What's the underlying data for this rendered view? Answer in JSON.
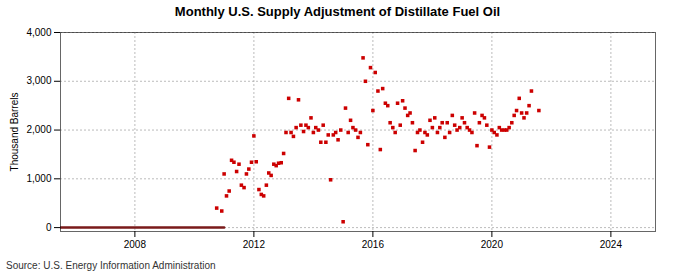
{
  "chart_data": {
    "type": "scatter",
    "title": "Monthly U.S. Supply Adjustment of Distillate Fuel Oil",
    "ylabel": "Thousand Barrels",
    "source": "Source: U.S. Energy Information Administration",
    "xlim": [
      2005.5,
      2025.5
    ],
    "ylim": [
      -80,
      4000
    ],
    "xticks": [
      2008,
      2012,
      2016,
      2020,
      2024
    ],
    "yticks": [
      0,
      {
        "value": 1000,
        "label": "1,000"
      },
      {
        "value": 2000,
        "label": "2,000"
      },
      {
        "value": 3000,
        "label": "3,000"
      },
      {
        "value": 4000,
        "label": "4,000"
      }
    ],
    "grid": true,
    "series": [
      {
        "type": "line",
        "color": "#7a1a1a",
        "line_style": "solid",
        "x": [
          2005.5,
          2011.0
        ],
        "values": [
          0,
          0
        ]
      },
      {
        "type": "scatter",
        "color": "#cc0000",
        "marker": "square",
        "x": [
          2010.75,
          2010.92,
          2011.0,
          2011.08,
          2011.17,
          2011.25,
          2011.33,
          2011.42,
          2011.5,
          2011.58,
          2011.67,
          2011.75,
          2011.83,
          2011.92,
          2012.0,
          2012.08,
          2012.17,
          2012.25,
          2012.33,
          2012.42,
          2012.5,
          2012.58,
          2012.67,
          2012.75,
          2012.83,
          2012.92,
          2013.0,
          2013.08,
          2013.17,
          2013.25,
          2013.33,
          2013.42,
          2013.5,
          2013.58,
          2013.67,
          2013.75,
          2013.83,
          2013.92,
          2014.0,
          2014.08,
          2014.17,
          2014.25,
          2014.33,
          2014.42,
          2014.5,
          2014.58,
          2014.67,
          2014.75,
          2014.83,
          2014.92,
          2015.0,
          2015.08,
          2015.17,
          2015.25,
          2015.33,
          2015.42,
          2015.5,
          2015.58,
          2015.67,
          2015.75,
          2015.83,
          2015.92,
          2016.0,
          2016.08,
          2016.17,
          2016.25,
          2016.33,
          2016.42,
          2016.5,
          2016.58,
          2016.67,
          2016.75,
          2016.83,
          2016.92,
          2017.0,
          2017.08,
          2017.17,
          2017.25,
          2017.33,
          2017.42,
          2017.5,
          2017.58,
          2017.67,
          2017.75,
          2017.83,
          2017.92,
          2018.0,
          2018.08,
          2018.17,
          2018.25,
          2018.33,
          2018.42,
          2018.5,
          2018.58,
          2018.67,
          2018.75,
          2018.83,
          2018.92,
          2019.0,
          2019.08,
          2019.17,
          2019.25,
          2019.33,
          2019.42,
          2019.5,
          2019.58,
          2019.67,
          2019.75,
          2019.83,
          2019.92,
          2020.0,
          2020.08,
          2020.17,
          2020.25,
          2020.33,
          2020.42,
          2020.5,
          2020.58,
          2020.67,
          2020.75,
          2020.83,
          2020.92,
          2021.0,
          2021.08,
          2021.17,
          2021.25,
          2021.33,
          2021.58
        ],
        "values": [
          400,
          340,
          1100,
          650,
          750,
          1380,
          1340,
          1150,
          1300,
          870,
          820,
          1100,
          1200,
          1340,
          1880,
          1350,
          780,
          680,
          650,
          870,
          1120,
          1070,
          1300,
          1270,
          1320,
          1330,
          1520,
          1950,
          2650,
          1950,
          1870,
          2050,
          2620,
          2100,
          1970,
          2100,
          2050,
          2250,
          1950,
          2050,
          2000,
          1750,
          2100,
          1750,
          1900,
          980,
          1900,
          1950,
          1800,
          2000,
          120,
          2450,
          1950,
          2200,
          2050,
          2000,
          1850,
          1950,
          3480,
          3000,
          1700,
          3280,
          2400,
          3180,
          2800,
          1600,
          2850,
          2550,
          2500,
          2150,
          2050,
          1950,
          2550,
          2100,
          2600,
          2450,
          2300,
          2350,
          2150,
          1580,
          1950,
          2000,
          1750,
          1950,
          1900,
          2200,
          2050,
          2250,
          1950,
          2050,
          2150,
          1850,
          2150,
          1950,
          2300,
          2100,
          2000,
          2050,
          2250,
          2150,
          2050,
          2000,
          1950,
          2350,
          1680,
          2150,
          2300,
          2250,
          2100,
          1650,
          2000,
          1950,
          1900,
          2050,
          2000,
          2000,
          2000,
          2050,
          2150,
          2300,
          2400,
          2650,
          2350,
          2250,
          2350,
          2500,
          2800,
          2400
        ]
      }
    ]
  }
}
